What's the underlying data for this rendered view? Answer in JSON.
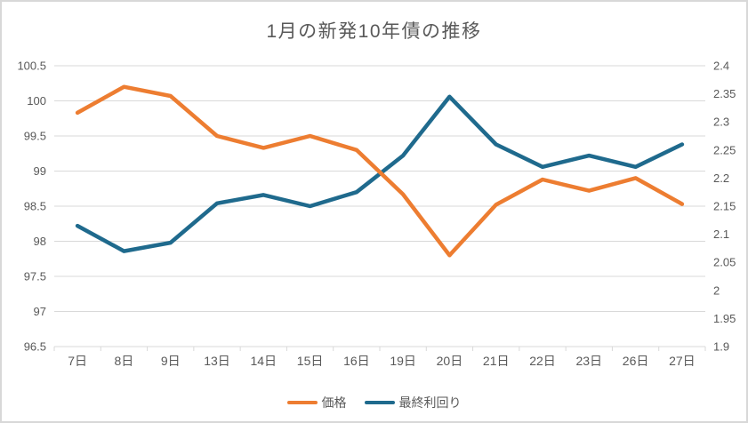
{
  "window": {
    "background": "#ffffff",
    "border_color": "#d8d8d8"
  },
  "chart_data": {
    "type": "line",
    "title": "1月の新発10年債の推移",
    "categories": [
      "7日",
      "8日",
      "9日",
      "13日",
      "14日",
      "15日",
      "16日",
      "19日",
      "20日",
      "21日",
      "22日",
      "23日",
      "26日",
      "27日"
    ],
    "series": [
      {
        "name": "最終利回り",
        "axis": "right",
        "color": "#1f6a8d",
        "values": [
          2.115,
          2.07,
          2.085,
          2.155,
          2.17,
          2.15,
          2.175,
          2.24,
          2.345,
          2.26,
          2.22,
          2.24,
          2.22,
          2.26
        ]
      },
      {
        "name": "価格",
        "axis": "left",
        "color": "#ed7d31",
        "values": [
          99.83,
          100.2,
          100.07,
          99.5,
          99.33,
          99.5,
          99.3,
          98.67,
          97.8,
          98.52,
          98.88,
          98.72,
          98.9,
          98.53
        ]
      }
    ],
    "legend_order": [
      1,
      0
    ],
    "left_axis": {
      "min": 96.5,
      "max": 100.5,
      "tick_labels": [
        "100.5",
        "100",
        "99.5",
        "99",
        "98.5",
        "98",
        "97.5",
        "97",
        "96.5"
      ]
    },
    "right_axis": {
      "min": 1.9,
      "max": 2.4,
      "tick_labels": [
        "2.4",
        "2.35",
        "2.3",
        "2.25",
        "2.2",
        "2.15",
        "2.1",
        "2.05",
        "2",
        "1.95",
        "1.9"
      ]
    },
    "grid": true,
    "legend_position": "bottom",
    "text_color": "#595959",
    "grid_color": "#d9d9d9",
    "line_width": 4.5
  }
}
